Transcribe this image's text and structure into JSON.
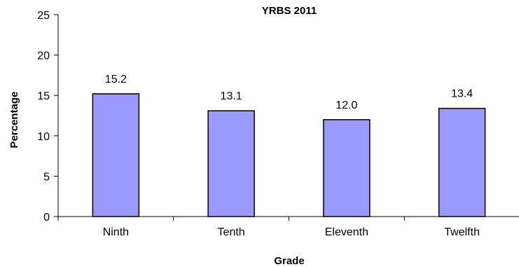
{
  "chart_data": {
    "type": "bar",
    "title": "YRBS 2011",
    "xlabel": "Grade",
    "ylabel": "Percentage",
    "categories": [
      "Ninth",
      "Tenth",
      "Eleventh",
      "Twelfth"
    ],
    "values": [
      15.2,
      13.1,
      12.0,
      13.4
    ],
    "data_labels": [
      "15.2",
      "13.1",
      "12.0",
      "13.4"
    ],
    "ylim": [
      0,
      25
    ],
    "yticks": [
      0,
      5,
      10,
      15,
      20,
      25
    ],
    "grid": false,
    "legend": "none",
    "colors": {
      "bar_fill": "#9999ff",
      "bar_stroke": "#000000",
      "axis": "#000000"
    }
  }
}
